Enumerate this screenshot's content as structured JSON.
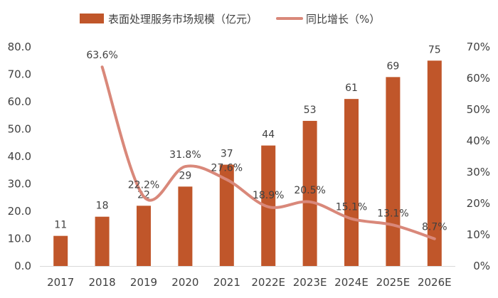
{
  "chart_data": {
    "type": "bar+line",
    "categories": [
      "2017",
      "2018",
      "2019",
      "2020",
      "2021",
      "2022E",
      "2023E",
      "2024E",
      "2025E",
      "2026E"
    ],
    "series": [
      {
        "name": "表面处理服务市场规模（亿元）",
        "type": "bar",
        "axis": "left",
        "color": "#C0562A",
        "values": [
          11,
          18,
          22,
          29,
          37,
          44,
          53,
          61,
          69,
          75
        ],
        "labels": [
          "11",
          "18",
          "22",
          "29",
          "37",
          "44",
          "53",
          "61",
          "69",
          "75"
        ]
      },
      {
        "name": "同比增长（%）",
        "type": "line",
        "axis": "right",
        "color": "#D9887A",
        "values": [
          null,
          63.6,
          22.2,
          31.8,
          27.6,
          18.9,
          20.5,
          15.1,
          13.1,
          8.7
        ],
        "labels": [
          null,
          "63.6%",
          "22.2%",
          "31.8%",
          "27.6%",
          "18.9%",
          "20.5%",
          "15.1%",
          "13.1%",
          "8.7%"
        ]
      }
    ],
    "left_axis": {
      "ylim": [
        0,
        80
      ],
      "ticks": [
        0,
        10,
        20,
        30,
        40,
        50,
        60,
        70,
        80
      ],
      "tick_labels": [
        "0.0",
        "10.0",
        "20.0",
        "30.0",
        "40.0",
        "50.0",
        "60.0",
        "70.0",
        "80.0"
      ]
    },
    "right_axis": {
      "ylim": [
        0,
        70
      ],
      "ticks": [
        0,
        10,
        20,
        30,
        40,
        50,
        60,
        70
      ],
      "tick_labels": [
        "0%",
        "10%",
        "20%",
        "30%",
        "40%",
        "50%",
        "60%",
        "70%"
      ]
    },
    "legend_position": "top-center",
    "grid": false,
    "title": ""
  }
}
